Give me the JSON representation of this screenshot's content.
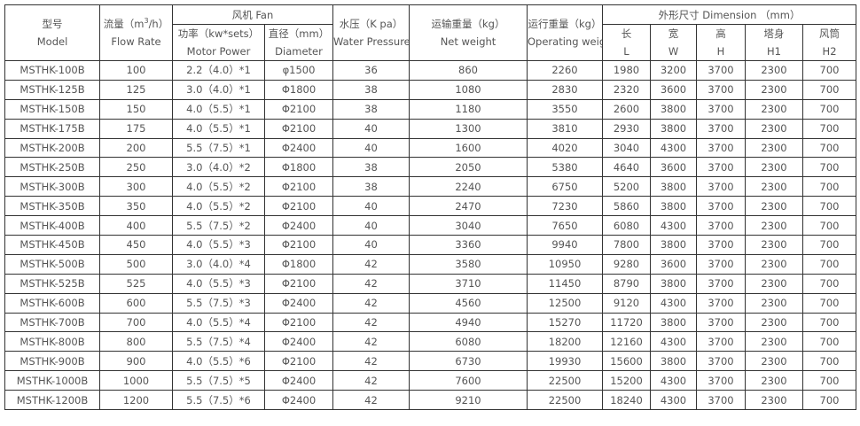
{
  "headers": {
    "model": {
      "cn": "型号",
      "en": "Model"
    },
    "flow": {
      "cn_pre": "流量（m",
      "sup": "3",
      "cn_post": "/h）",
      "en": "Flow Rate"
    },
    "fan": "风机 Fan",
    "power": {
      "cn": "功率（kw*sets）",
      "en": "Motor Power"
    },
    "diameter": {
      "cn": "直径（mm）",
      "en": "Diameter"
    },
    "pressure": {
      "cn": "水压（K pa）",
      "en": "Water Pressure"
    },
    "net": {
      "cn": "运输重量（kg）",
      "en": "Net weight"
    },
    "operating": {
      "cn": "运行重量（kg）",
      "en": "Operating weight"
    },
    "dimension": "外形尺寸 Dimension （mm）",
    "L": {
      "cn": "长",
      "en": "L"
    },
    "W": {
      "cn": "宽",
      "en": "W"
    },
    "H": {
      "cn": "高",
      "en": "H"
    },
    "H1": {
      "cn": "塔身",
      "en": "H1"
    },
    "H2": {
      "cn": "风筒",
      "en": "H2"
    }
  },
  "rows": [
    [
      "MSTHK-100B",
      "100",
      "2.2（4.0）*1",
      "φ1500",
      "36",
      "860",
      "2260",
      "1980",
      "3200",
      "3700",
      "2300",
      "700"
    ],
    [
      "MSTHK-125B",
      "125",
      "3.0（4.0）*1",
      "Φ1800",
      "38",
      "1080",
      "2830",
      "2320",
      "3600",
      "3700",
      "2300",
      "700"
    ],
    [
      "MSTHK-150B",
      "150",
      "4.0（5.5）*1",
      "Φ2100",
      "38",
      "1180",
      "3550",
      "2600",
      "3800",
      "3700",
      "2300",
      "700"
    ],
    [
      "MSTHK-175B",
      "175",
      "4.0（5.5）*1",
      "Φ2100",
      "40",
      "1300",
      "3810",
      "2930",
      "3800",
      "3700",
      "2300",
      "700"
    ],
    [
      "MSTHK-200B",
      "200",
      "5.5（7.5）*1",
      "Φ2400",
      "40",
      "1600",
      "4020",
      "3040",
      "4300",
      "3700",
      "2300",
      "700"
    ],
    [
      "MSTHK-250B",
      "250",
      "3.0（4.0）*2",
      "Φ1800",
      "38",
      "2050",
      "5380",
      "4640",
      "3600",
      "3700",
      "2300",
      "700"
    ],
    [
      "MSTHK-300B",
      "300",
      "4.0（5.5）*2",
      "Φ2100",
      "38",
      "2240",
      "6750",
      "5200",
      "3800",
      "3700",
      "2300",
      "700"
    ],
    [
      "MSTHK-350B",
      "350",
      "4.0（5.5）*2",
      "Φ2100",
      "40",
      "2470",
      "7230",
      "5860",
      "3800",
      "3700",
      "2300",
      "700"
    ],
    [
      "MSTHK-400B",
      "400",
      "5.5（7.5）*2",
      "Φ2400",
      "40",
      "3040",
      "7650",
      "6080",
      "4300",
      "3700",
      "2300",
      "700"
    ],
    [
      "MSTHK-450B",
      "450",
      "4.0（5.5）*3",
      "Φ2100",
      "40",
      "3360",
      "9940",
      "7800",
      "3800",
      "3700",
      "2300",
      "700"
    ],
    [
      "MSTHK-500B",
      "500",
      "3.0（4.0）*4",
      "Φ1800",
      "42",
      "3580",
      "10950",
      "9280",
      "3600",
      "3700",
      "2300",
      "700"
    ],
    [
      "MSTHK-525B",
      "525",
      "4.0（5.5）*3",
      "Φ2100",
      "42",
      "3710",
      "11450",
      "8790",
      "3800",
      "3700",
      "2300",
      "700"
    ],
    [
      "MSTHK-600B",
      "600",
      "5.5（7.5）*3",
      "Φ2400",
      "42",
      "4560",
      "12500",
      "9120",
      "4300",
      "3700",
      "2300",
      "700"
    ],
    [
      "MSTHK-700B",
      "700",
      "4.0（5.5）*4",
      "Φ2100",
      "42",
      "4940",
      "15270",
      "11720",
      "3800",
      "3700",
      "2300",
      "700"
    ],
    [
      "MSTHK-800B",
      "800",
      "5.5（7.5）*4",
      "Φ2400",
      "42",
      "6080",
      "18200",
      "12160",
      "4300",
      "3700",
      "2300",
      "700"
    ],
    [
      "MSTHK-900B",
      "900",
      "4.0（5.5）*6",
      "Φ2100",
      "42",
      "6730",
      "19930",
      "15600",
      "3800",
      "3700",
      "2300",
      "700"
    ],
    [
      "MSTHK-1000B",
      "1000",
      "5.5（7.5）*5",
      "Φ2400",
      "42",
      "7600",
      "22500",
      "15200",
      "4300",
      "3700",
      "2300",
      "700"
    ],
    [
      "MSTHK-1200B",
      "1200",
      "5.5（7.5）*6",
      "Φ2400",
      "42",
      "9210",
      "22500",
      "18240",
      "4300",
      "3700",
      "2300",
      "700"
    ]
  ]
}
